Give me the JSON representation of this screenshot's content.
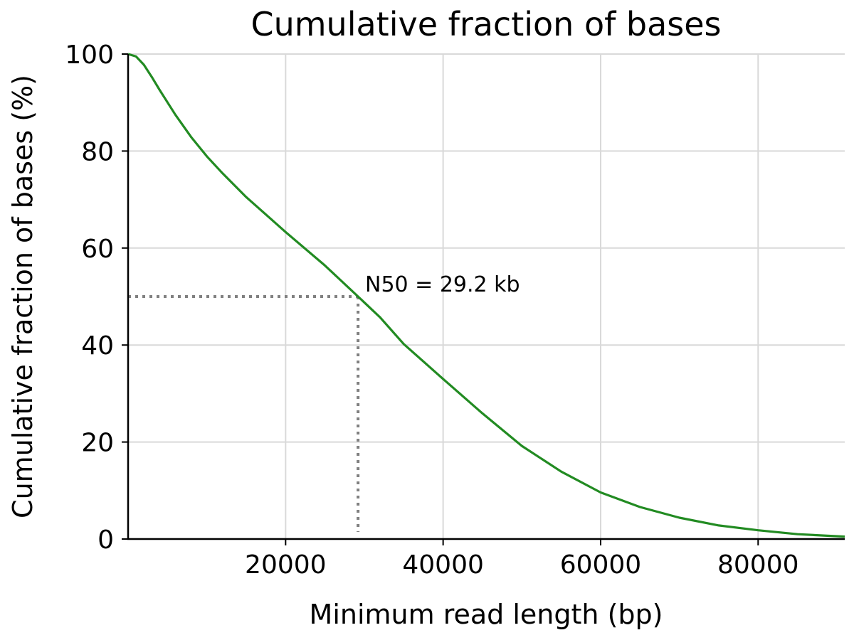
{
  "chart_data": {
    "type": "line",
    "title": "Cumulative fraction of bases",
    "xlabel": "Minimum read length (bp)",
    "ylabel": "Cumulative fraction of bases (%)",
    "xlim": [
      0,
      91000
    ],
    "ylim": [
      0,
      100
    ],
    "x_ticks": [
      20000,
      40000,
      60000,
      80000
    ],
    "y_ticks": [
      0,
      20,
      40,
      60,
      80,
      100
    ],
    "grid": true,
    "legend": "none",
    "series": [
      {
        "color": "#228B22",
        "x": [
          0,
          1000,
          2000,
          3000,
          4000,
          6000,
          8000,
          10000,
          12000,
          15000,
          20000,
          25000,
          29200,
          32000,
          35000,
          40000,
          45000,
          50000,
          55000,
          60000,
          65000,
          70000,
          75000,
          80000,
          85000,
          91000
        ],
        "y": [
          100,
          99.5,
          97.8,
          95.3,
          92.6,
          87.5,
          82.9,
          78.9,
          75.4,
          70.5,
          63.3,
          56.4,
          50,
          45.7,
          40.2,
          33.0,
          25.9,
          19.2,
          13.9,
          9.6,
          6.6,
          4.4,
          2.8,
          1.8,
          1.0,
          0.5
        ]
      }
    ],
    "annotation": {
      "text": "N50 = 29.2 kb",
      "x": 29200,
      "y": 50,
      "color": "#808080"
    }
  }
}
